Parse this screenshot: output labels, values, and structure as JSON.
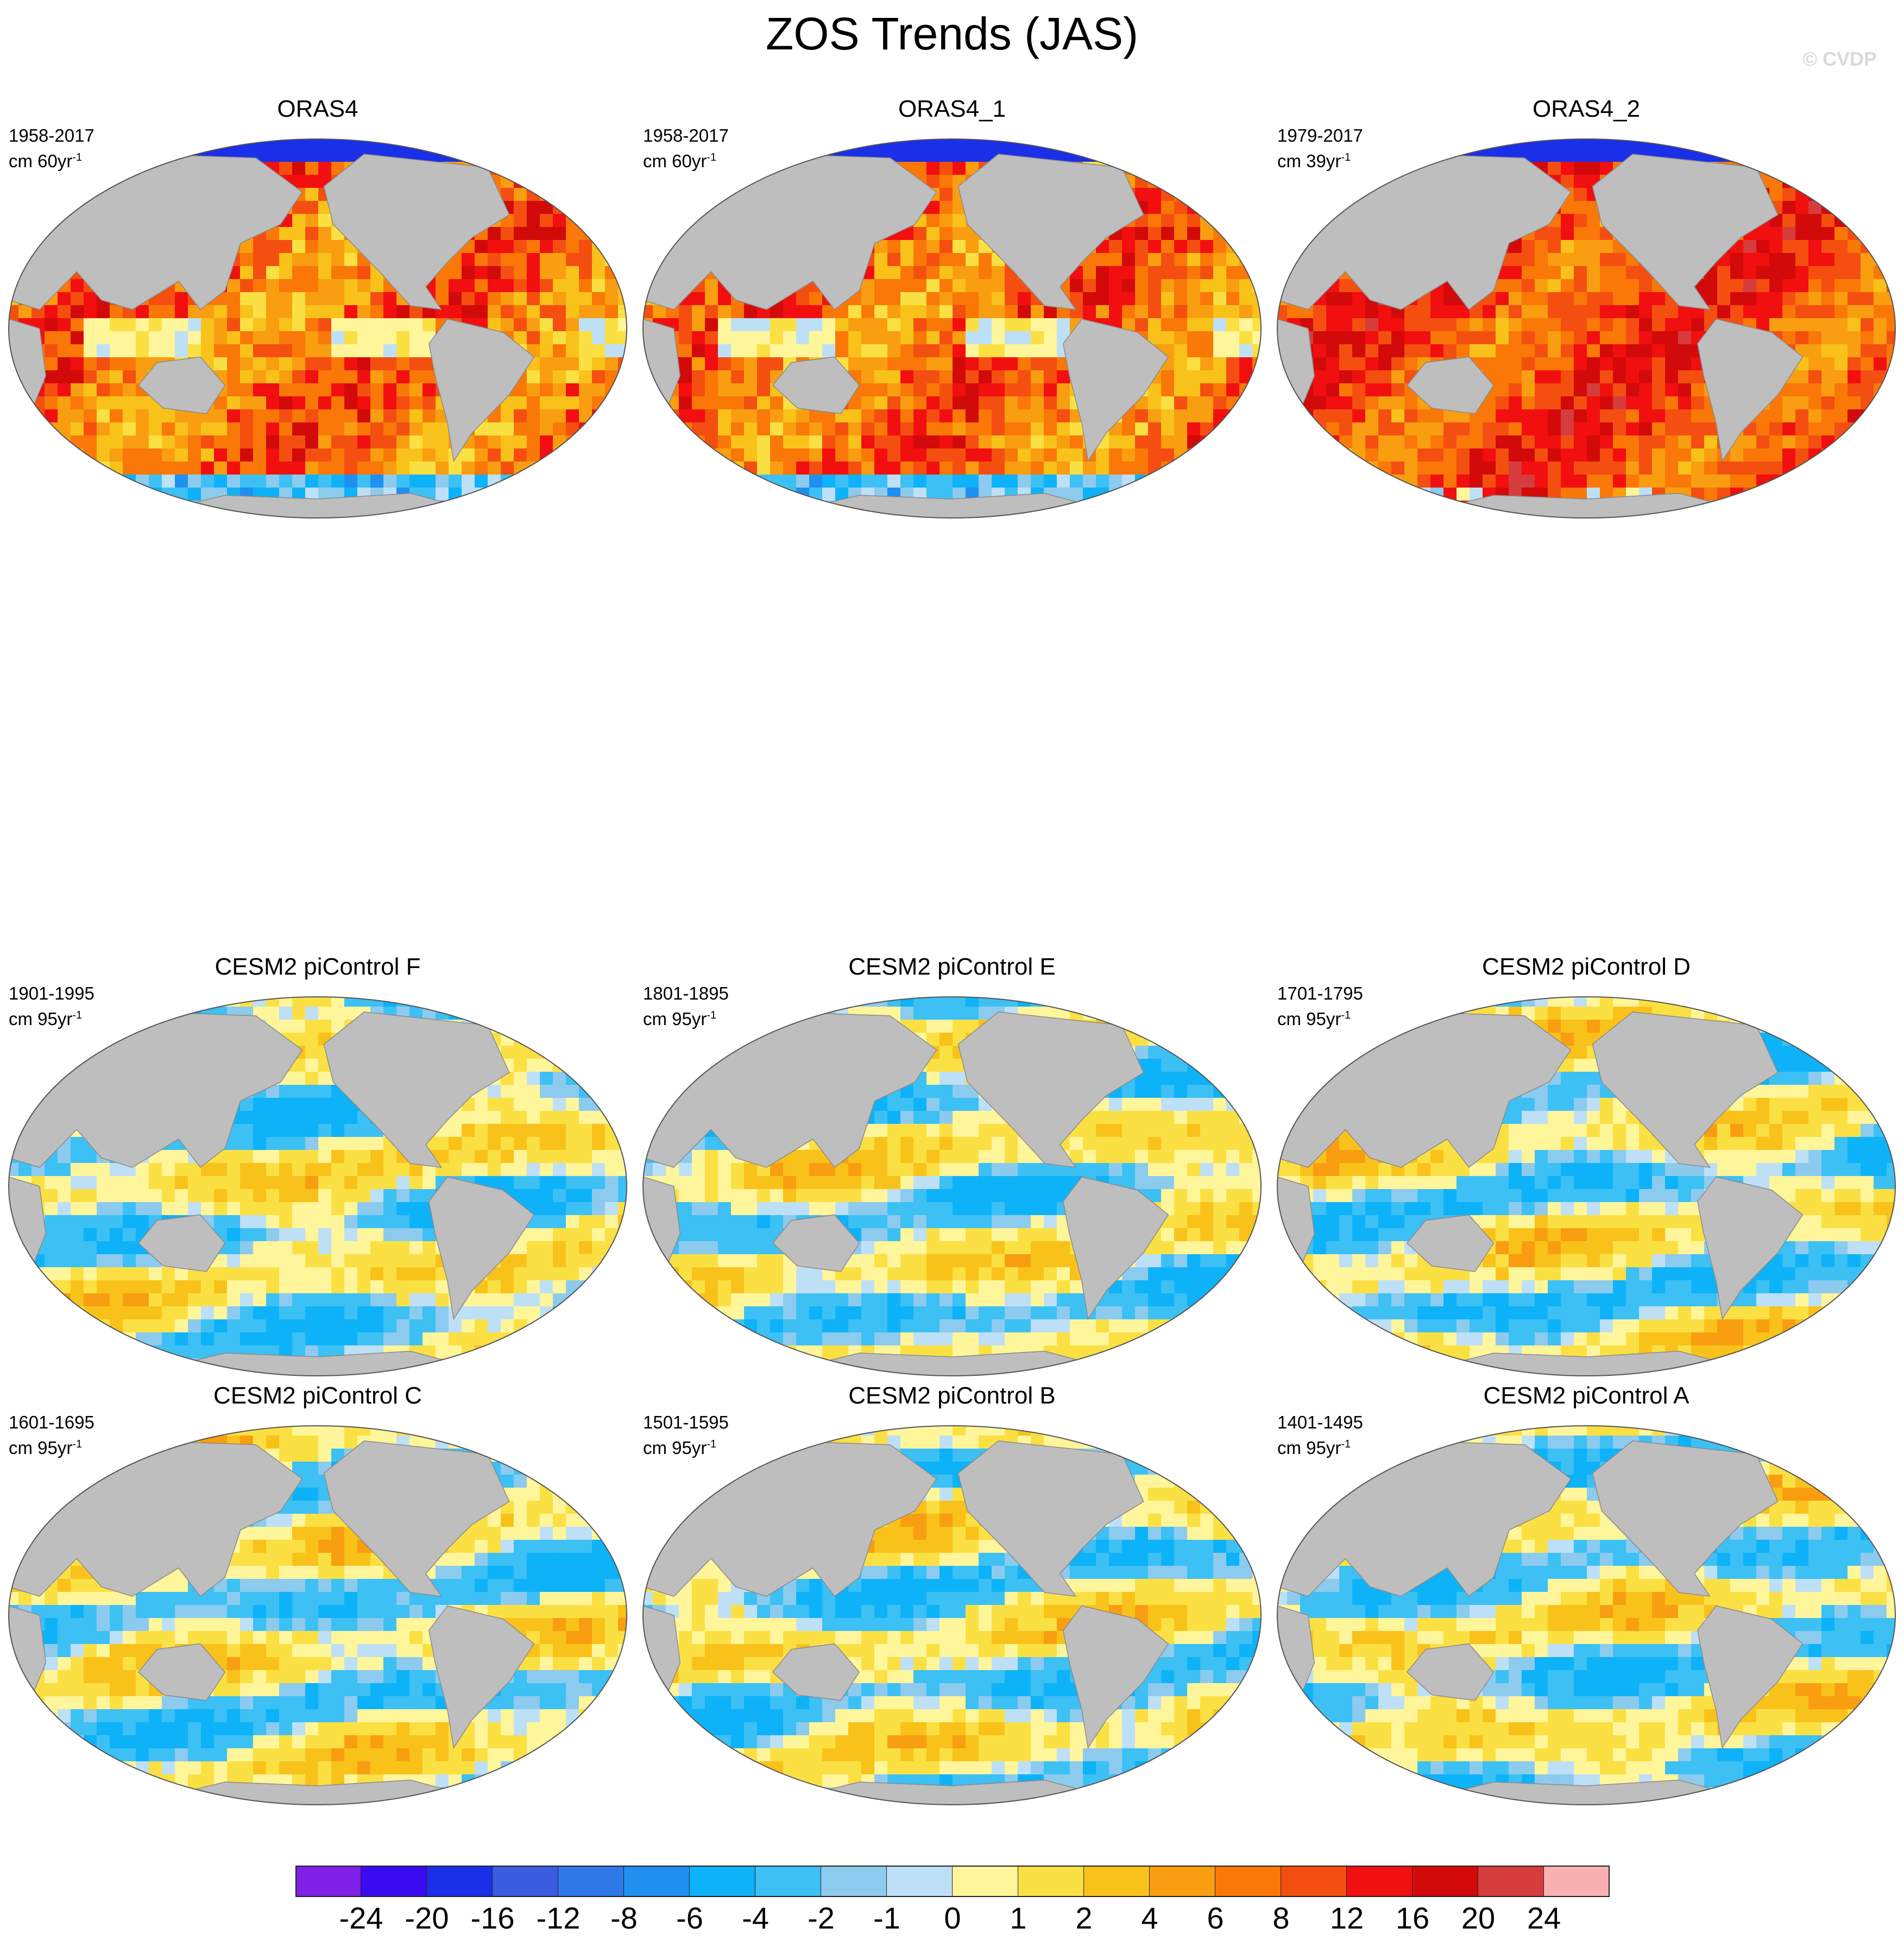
{
  "title": "ZOS Trends (JAS)",
  "watermark": "© CVDP",
  "panels": [
    {
      "title": "ORAS4",
      "period": "1958-2017",
      "unit": "cm 60yr",
      "unit_exp": "-1",
      "regime": "warm"
    },
    {
      "title": "ORAS4_1",
      "period": "1958-2017",
      "unit": "cm 60yr",
      "unit_exp": "-1",
      "regime": "warm"
    },
    {
      "title": "ORAS4_2",
      "period": "1979-2017",
      "unit": "cm 39yr",
      "unit_exp": "-1",
      "regime": "hot"
    },
    {
      "title": "CESM2 piControl F",
      "period": "1901-1995",
      "unit": "cm 95yr",
      "unit_exp": "-1",
      "regime": "neutral"
    },
    {
      "title": "CESM2 piControl E",
      "period": "1801-1895",
      "unit": "cm 95yr",
      "unit_exp": "-1",
      "regime": "neutral"
    },
    {
      "title": "CESM2 piControl D",
      "period": "1701-1795",
      "unit": "cm 95yr",
      "unit_exp": "-1",
      "regime": "neutral"
    },
    {
      "title": "CESM2 piControl C",
      "period": "1601-1695",
      "unit": "cm 95yr",
      "unit_exp": "-1",
      "regime": "neutral"
    },
    {
      "title": "CESM2 piControl B",
      "period": "1501-1595",
      "unit": "cm 95yr",
      "unit_exp": "-1",
      "regime": "neutral"
    },
    {
      "title": "CESM2 piControl A",
      "period": "1401-1495",
      "unit": "cm 95yr",
      "unit_exp": "-1",
      "regime": "neutral"
    }
  ],
  "colorbar": {
    "colors": [
      "#7f1fe8",
      "#3a0bf0",
      "#1a2fe8",
      "#3b5ce0",
      "#2f78e8",
      "#1f90f0",
      "#0eb2f8",
      "#3dc0f4",
      "#8ccbee",
      "#bde0f6",
      "#fff59a",
      "#fbe044",
      "#f9c21a",
      "#f99e10",
      "#f97808",
      "#f44f10",
      "#f20f0f",
      "#d20a0a",
      "#d73c3c",
      "#f8b0b0"
    ],
    "labels": [
      "-24",
      "-20",
      "-16",
      "-12",
      "-8",
      "-6",
      "-4",
      "-2",
      "-1",
      "0",
      "1",
      "2",
      "4",
      "6",
      "8",
      "12",
      "16",
      "20",
      "24"
    ]
  },
  "land_color": "#bebebe"
}
